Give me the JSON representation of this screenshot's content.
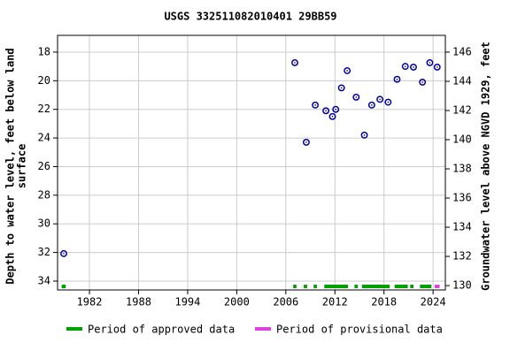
{
  "chart_data": {
    "type": "scatter",
    "title": "USGS 332511082010401 29BB59",
    "ylabel": [
      "Depth to water level, feet below land",
      "surface"
    ],
    "y2label": "Groundwater level above NGVD 1929, feet",
    "xlim": [
      1978.1,
      2025.5
    ],
    "xticks": [
      1982,
      1988,
      1994,
      2000,
      2006,
      2012,
      2018,
      2024
    ],
    "ylim": [
      34.62,
      16.83
    ],
    "yticks": [
      18,
      20,
      22,
      24,
      26,
      28,
      30,
      32,
      34
    ],
    "y2lim": [
      129.7,
      147.15
    ],
    "y2ticks": [
      130,
      132,
      134,
      136,
      138,
      140,
      142,
      144,
      146
    ],
    "grid": true,
    "color": "#0000a0",
    "x": [
      1978.86,
      2007.1,
      2008.5,
      2009.6,
      2010.9,
      2011.7,
      2012.1,
      2012.8,
      2013.5,
      2014.6,
      2015.6,
      2016.5,
      2017.5,
      2018.5,
      2019.6,
      2020.6,
      2021.6,
      2022.7,
      2023.6,
      2024.5
    ],
    "values": [
      32.08,
      18.74,
      24.3,
      21.7,
      22.1,
      22.5,
      22.0,
      20.5,
      19.3,
      21.15,
      23.8,
      21.7,
      21.3,
      21.5,
      19.9,
      19.0,
      19.05,
      20.1,
      18.74,
      19.05
    ],
    "periods": [
      {
        "name": "Period of approved data",
        "color": "#00a000",
        "ranges": [
          [
            1978.6,
            1979.1
          ],
          [
            2006.9,
            2007.3
          ],
          [
            2008.2,
            2008.6
          ],
          [
            2009.4,
            2009.8
          ],
          [
            2010.7,
            2013.6
          ],
          [
            2014.4,
            2014.8
          ],
          [
            2015.3,
            2018.7
          ],
          [
            2019.3,
            2020.9
          ],
          [
            2021.2,
            2021.6
          ],
          [
            2022.4,
            2023.8
          ]
        ]
      },
      {
        "name": "Period of provisional data",
        "color": "#e040e0",
        "ranges": [
          [
            2024.2,
            2024.8
          ]
        ]
      }
    ]
  }
}
